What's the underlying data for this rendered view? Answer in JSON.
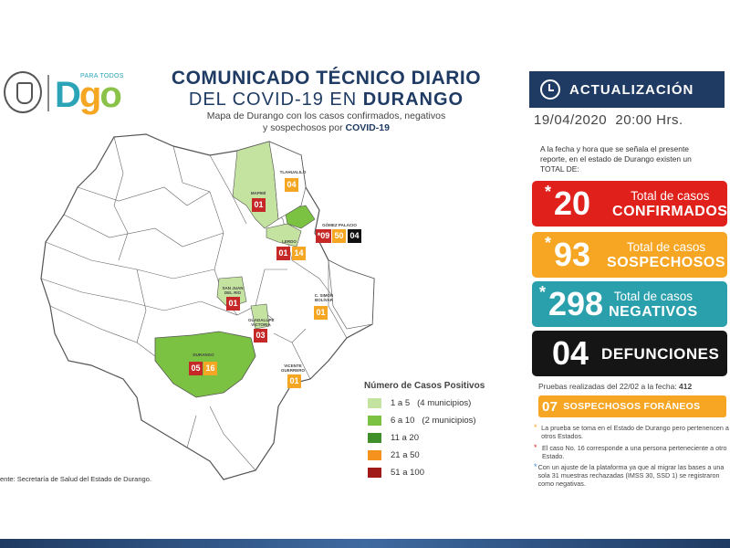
{
  "header": {
    "logo_para": "PARA TODOS",
    "logo_text": [
      "D",
      "g",
      "o"
    ],
    "title_line1": "COMUNICADO TÉCNICO DIARIO",
    "title_line2_prefix": "DEL COVID-19 EN ",
    "title_line2_bold": "DURANGO",
    "subtitle_line1": "Mapa de Durango con los casos confirmados, negativos",
    "subtitle_line2": "y sospechosos por ",
    "subtitle_bold": "COVID-19"
  },
  "map": {
    "municipalities": [
      {
        "name": "MAPIMÍ",
        "values": [
          "01"
        ],
        "level": "1 a 5"
      },
      {
        "name": "TLAHUALILO",
        "values": [
          "04"
        ],
        "level": ""
      },
      {
        "name": "GÓMEZ PALACIO",
        "values": [
          "*09",
          "50",
          "04"
        ],
        "level": "6 a 10"
      },
      {
        "name": "LERDO",
        "values": [
          "01",
          "14"
        ],
        "level": "1 a 5"
      },
      {
        "name": "SAN JUAN DEL RÍO",
        "values": [
          "01"
        ],
        "level": "1 a 5"
      },
      {
        "name": "C. SIMÓN BOLÍVAR",
        "values": [
          "01"
        ],
        "level": ""
      },
      {
        "name": "GUADALUPE VICTORIA",
        "values": [
          "03"
        ],
        "level": "1 a 5"
      },
      {
        "name": "DURANGO",
        "values": [
          "05",
          "16"
        ],
        "level": "6 a 10"
      },
      {
        "name": "VICENTE GUERRERO",
        "values": [
          "01"
        ],
        "level": ""
      }
    ]
  },
  "legend": {
    "title": "Número de Casos Positivos",
    "items": [
      {
        "label": "1 a 5",
        "count": "(4 municipios)",
        "color": "#c5e3a0"
      },
      {
        "label": "6 a 10",
        "count": "(2 municipios)",
        "color": "#7cc242"
      },
      {
        "label": "11 a 20",
        "count": "",
        "color": "#3f8f2a"
      },
      {
        "label": "21 a 50",
        "count": "",
        "color": "#f5921e"
      },
      {
        "label": "51 a 100",
        "count": "",
        "color": "#a01a1a"
      }
    ]
  },
  "source": "ente: Secretaría de Salud del Estado de Durango.",
  "panel": {
    "update_label": "ACTUALIZACIÓN",
    "date": "19/04/2020",
    "time": "20:00 Hrs.",
    "intro": "A la fecha y hora que se señala el presente reporte, en el estado de Durango existen un TOTAL DE:",
    "cards": [
      {
        "asterisk": "*",
        "number": "20",
        "line1": "Total de casos",
        "line2": "CONFIRMADOS",
        "color": "#e0201a"
      },
      {
        "asterisk": "*",
        "number": "93",
        "line1": "Total de casos",
        "line2": "SOSPECHOSOS",
        "color": "#f6a623"
      },
      {
        "asterisk": "*",
        "number": "298",
        "line1": "Total de casos",
        "line2": "NEGATIVOS",
        "color": "#2aa0ad"
      },
      {
        "asterisk": "",
        "number": "04",
        "line1": "",
        "line2": "DEFUNCIONES",
        "color": "#151515"
      }
    ],
    "tests_text": "Pruebas realizadas del 22/02 a la fecha: ",
    "tests_value": "412",
    "foreign_number": "07",
    "foreign_label": "SOSPECHOSOS FORÁNEOS",
    "notes": [
      {
        "star": "*",
        "star_color": "#f6a623",
        "text": "La prueba se toma en el Estado de Durango pero pertenencen a otros Estados."
      },
      {
        "star": "*",
        "star_color": "#d32f2f",
        "text": "El caso No. 16 corresponde a una persona perteneciente a otro Estado."
      },
      {
        "star": "*",
        "star_color": "#3b8fd8",
        "text": "Con un ajuste de la plataforma ya que al migrar las bases a una sola 31 muestras rechazadas (IMSS 30, SSD 1) se registraron como negativas."
      }
    ]
  }
}
